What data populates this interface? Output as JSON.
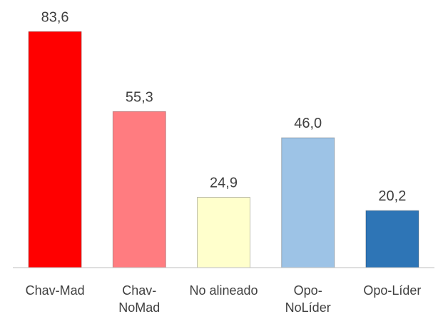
{
  "chart_data": {
    "type": "bar",
    "categories": [
      "Chav-Mad",
      "Chav-\nNoMad",
      "No alineado",
      "Opo-\nNoLíder",
      "Opo-Líder"
    ],
    "values": [
      83.6,
      55.3,
      24.9,
      46.0,
      20.2
    ],
    "value_labels": [
      "83,6",
      "55,3",
      "24,9",
      "46,0",
      "20,2"
    ],
    "colors": [
      "#ff0000",
      "#ff7c80",
      "#ffffcc",
      "#9dc3e6",
      "#2e75b6"
    ],
    "ylim": [
      0,
      90
    ],
    "grid": false
  }
}
